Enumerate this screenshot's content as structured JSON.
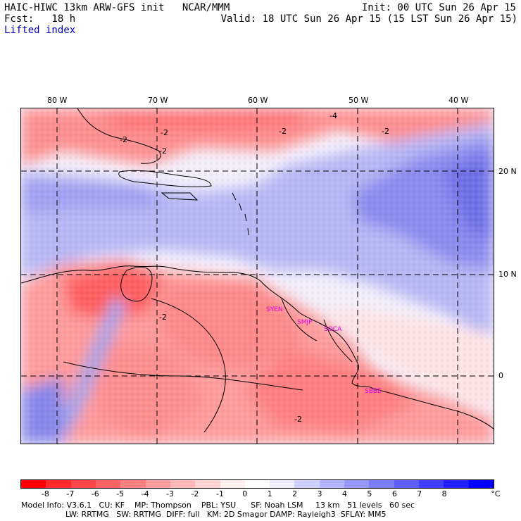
{
  "header": {
    "model_line": "HAIC-HIWC 13km ARW-GFS init   NCAR/MMM",
    "fcst_line": "Fcst:   18 h",
    "field": "Lifted index",
    "init": "Init: 00 UTC Sun 26 Apr 15",
    "valid": "Valid: 18 UTC Sun 26 Apr 15 (15 LST Sun 26 Apr 15)"
  },
  "map": {
    "longitude_labels": [
      "80 W",
      "70 W",
      "60 W",
      "50 W",
      "40 W"
    ],
    "latitude_labels": [
      "20 N",
      "10 N",
      "0"
    ],
    "station_labels": [
      "SYEN",
      "SMJP",
      "SOCA",
      "SBBE"
    ],
    "contour_labels": [
      "-2",
      "-4",
      "-2",
      "-2",
      "-2",
      "-2",
      "-2",
      "-2"
    ]
  },
  "colorbar": {
    "labels": [
      "-8",
      "-7",
      "-6",
      "-5",
      "-4",
      "-3",
      "-2",
      "-1",
      "0",
      "1",
      "2",
      "3",
      "4",
      "5",
      "6",
      "7",
      "8"
    ],
    "unit": "°C",
    "colors": [
      "#ff0000",
      "#ff2a2a",
      "#ff4848",
      "#ff6464",
      "#ff8080",
      "#ff9c9c",
      "#ffb8b8",
      "#ffd4d4",
      "#ffefef",
      "#ffffff",
      "#eeeeff",
      "#d0d0ff",
      "#b4b4ff",
      "#9898ff",
      "#7c7cff",
      "#6060ff",
      "#4040ff",
      "#2020ff",
      "#0000ff"
    ]
  },
  "footer": {
    "line1": "Model Info: V3.6.1   CU: KF    MP: Thompson    PBL: YSU      SF: Noah LSM     13 km   51 levels   60 sec",
    "line2": "LW: RRTMG   SW: RRTMG  DIFF: full   KM: 2D Smagor DAMP: Rayleigh3  SFLAY: MM5"
  }
}
